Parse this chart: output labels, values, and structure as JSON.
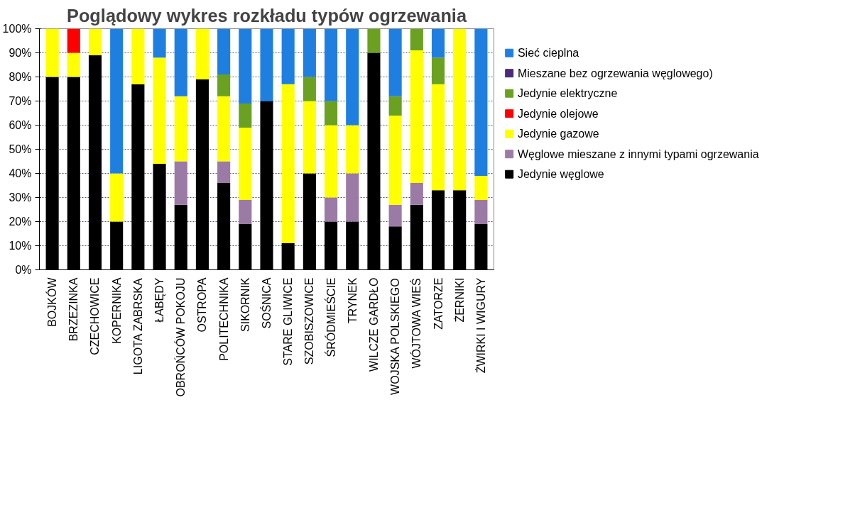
{
  "chart_data": {
    "type": "bar",
    "stacked": true,
    "title": "Poglądowy wykres rozkładu typów ogrzewania",
    "categories": [
      "BOJKÓW",
      "BRZEZINKA",
      "CZECHOWICE",
      "KOPERNIKA",
      "LIGOTA ZABRSKA",
      "ŁABĘDY",
      "OBROŃCÓW POKOJU",
      "OSTROPA",
      "POLITECHNIKA",
      "SIKORNIK",
      "SOŚNICA",
      "STARE GLIWICE",
      "SZOBISZOWICE",
      "ŚRÓDMIEŚCIE",
      "TRYNEK",
      "WILCZE GARDŁO",
      "WOJSKA POLSKIEGO",
      "WÓJTOWA WIEŚ",
      "ZATORZE",
      "ŻERNIKI",
      "ŻWIRKI I WIGURY"
    ],
    "series": [
      {
        "name": "Jedynie węglowe",
        "color": "#000000",
        "values": [
          80,
          80,
          89,
          20,
          77,
          44,
          27,
          79,
          36,
          19,
          70,
          11,
          40,
          20,
          20,
          90,
          18,
          27,
          33,
          33,
          19
        ]
      },
      {
        "name": "Węglowe mieszane z innymi typami ogrzewania",
        "color": "#9b7aa6",
        "values": [
          0,
          0,
          0,
          0,
          0,
          0,
          18,
          0,
          9,
          10,
          0,
          0,
          0,
          10,
          20,
          0,
          9,
          9,
          0,
          0,
          10
        ]
      },
      {
        "name": "Jedynie gazowe",
        "color": "#ffff00",
        "values": [
          20,
          10,
          11,
          20,
          23,
          44,
          27,
          21,
          27,
          30,
          0,
          66,
          30,
          30,
          20,
          0,
          37,
          55,
          44,
          67,
          10
        ]
      },
      {
        "name": "Jedynie olejowe",
        "color": "#ff0000",
        "values": [
          0,
          10,
          0,
          0,
          0,
          0,
          0,
          0,
          0,
          0,
          0,
          0,
          0,
          0,
          0,
          0,
          0,
          0,
          0,
          0,
          0
        ]
      },
      {
        "name": "Jedynie elektryczne",
        "color": "#6aa121",
        "values": [
          0,
          0,
          0,
          0,
          0,
          0,
          0,
          0,
          9,
          10,
          0,
          0,
          10,
          10,
          0,
          10,
          8,
          9,
          11,
          0,
          0
        ]
      },
      {
        "name": "Mieszane bez ogrzewania węglowego)",
        "color": "#4b2a7b",
        "values": [
          0,
          0,
          0,
          0,
          0,
          0,
          0,
          0,
          0,
          0,
          0,
          0,
          0,
          0,
          0,
          0,
          0,
          0,
          0,
          0,
          0
        ]
      },
      {
        "name": "Sieć cieplna",
        "color": "#1f7fe0",
        "values": [
          0,
          0,
          0,
          60,
          0,
          12,
          28,
          0,
          19,
          31,
          30,
          23,
          20,
          30,
          40,
          0,
          28,
          0,
          12,
          0,
          61
        ]
      }
    ],
    "ylim": [
      0,
      100
    ],
    "yticks": [
      {
        "value": 0,
        "label": "0%"
      },
      {
        "value": 10,
        "label": "10%"
      },
      {
        "value": 20,
        "label": "20%"
      },
      {
        "value": 30,
        "label": "30%"
      },
      {
        "value": 40,
        "label": "40%"
      },
      {
        "value": 50,
        "label": "50%"
      },
      {
        "value": 60,
        "label": "60%"
      },
      {
        "value": 70,
        "label": "70%"
      },
      {
        "value": 80,
        "label": "80%"
      },
      {
        "value": 90,
        "label": "90%"
      },
      {
        "value": 100,
        "label": "100%"
      }
    ],
    "grid": "y",
    "legend": "right"
  }
}
